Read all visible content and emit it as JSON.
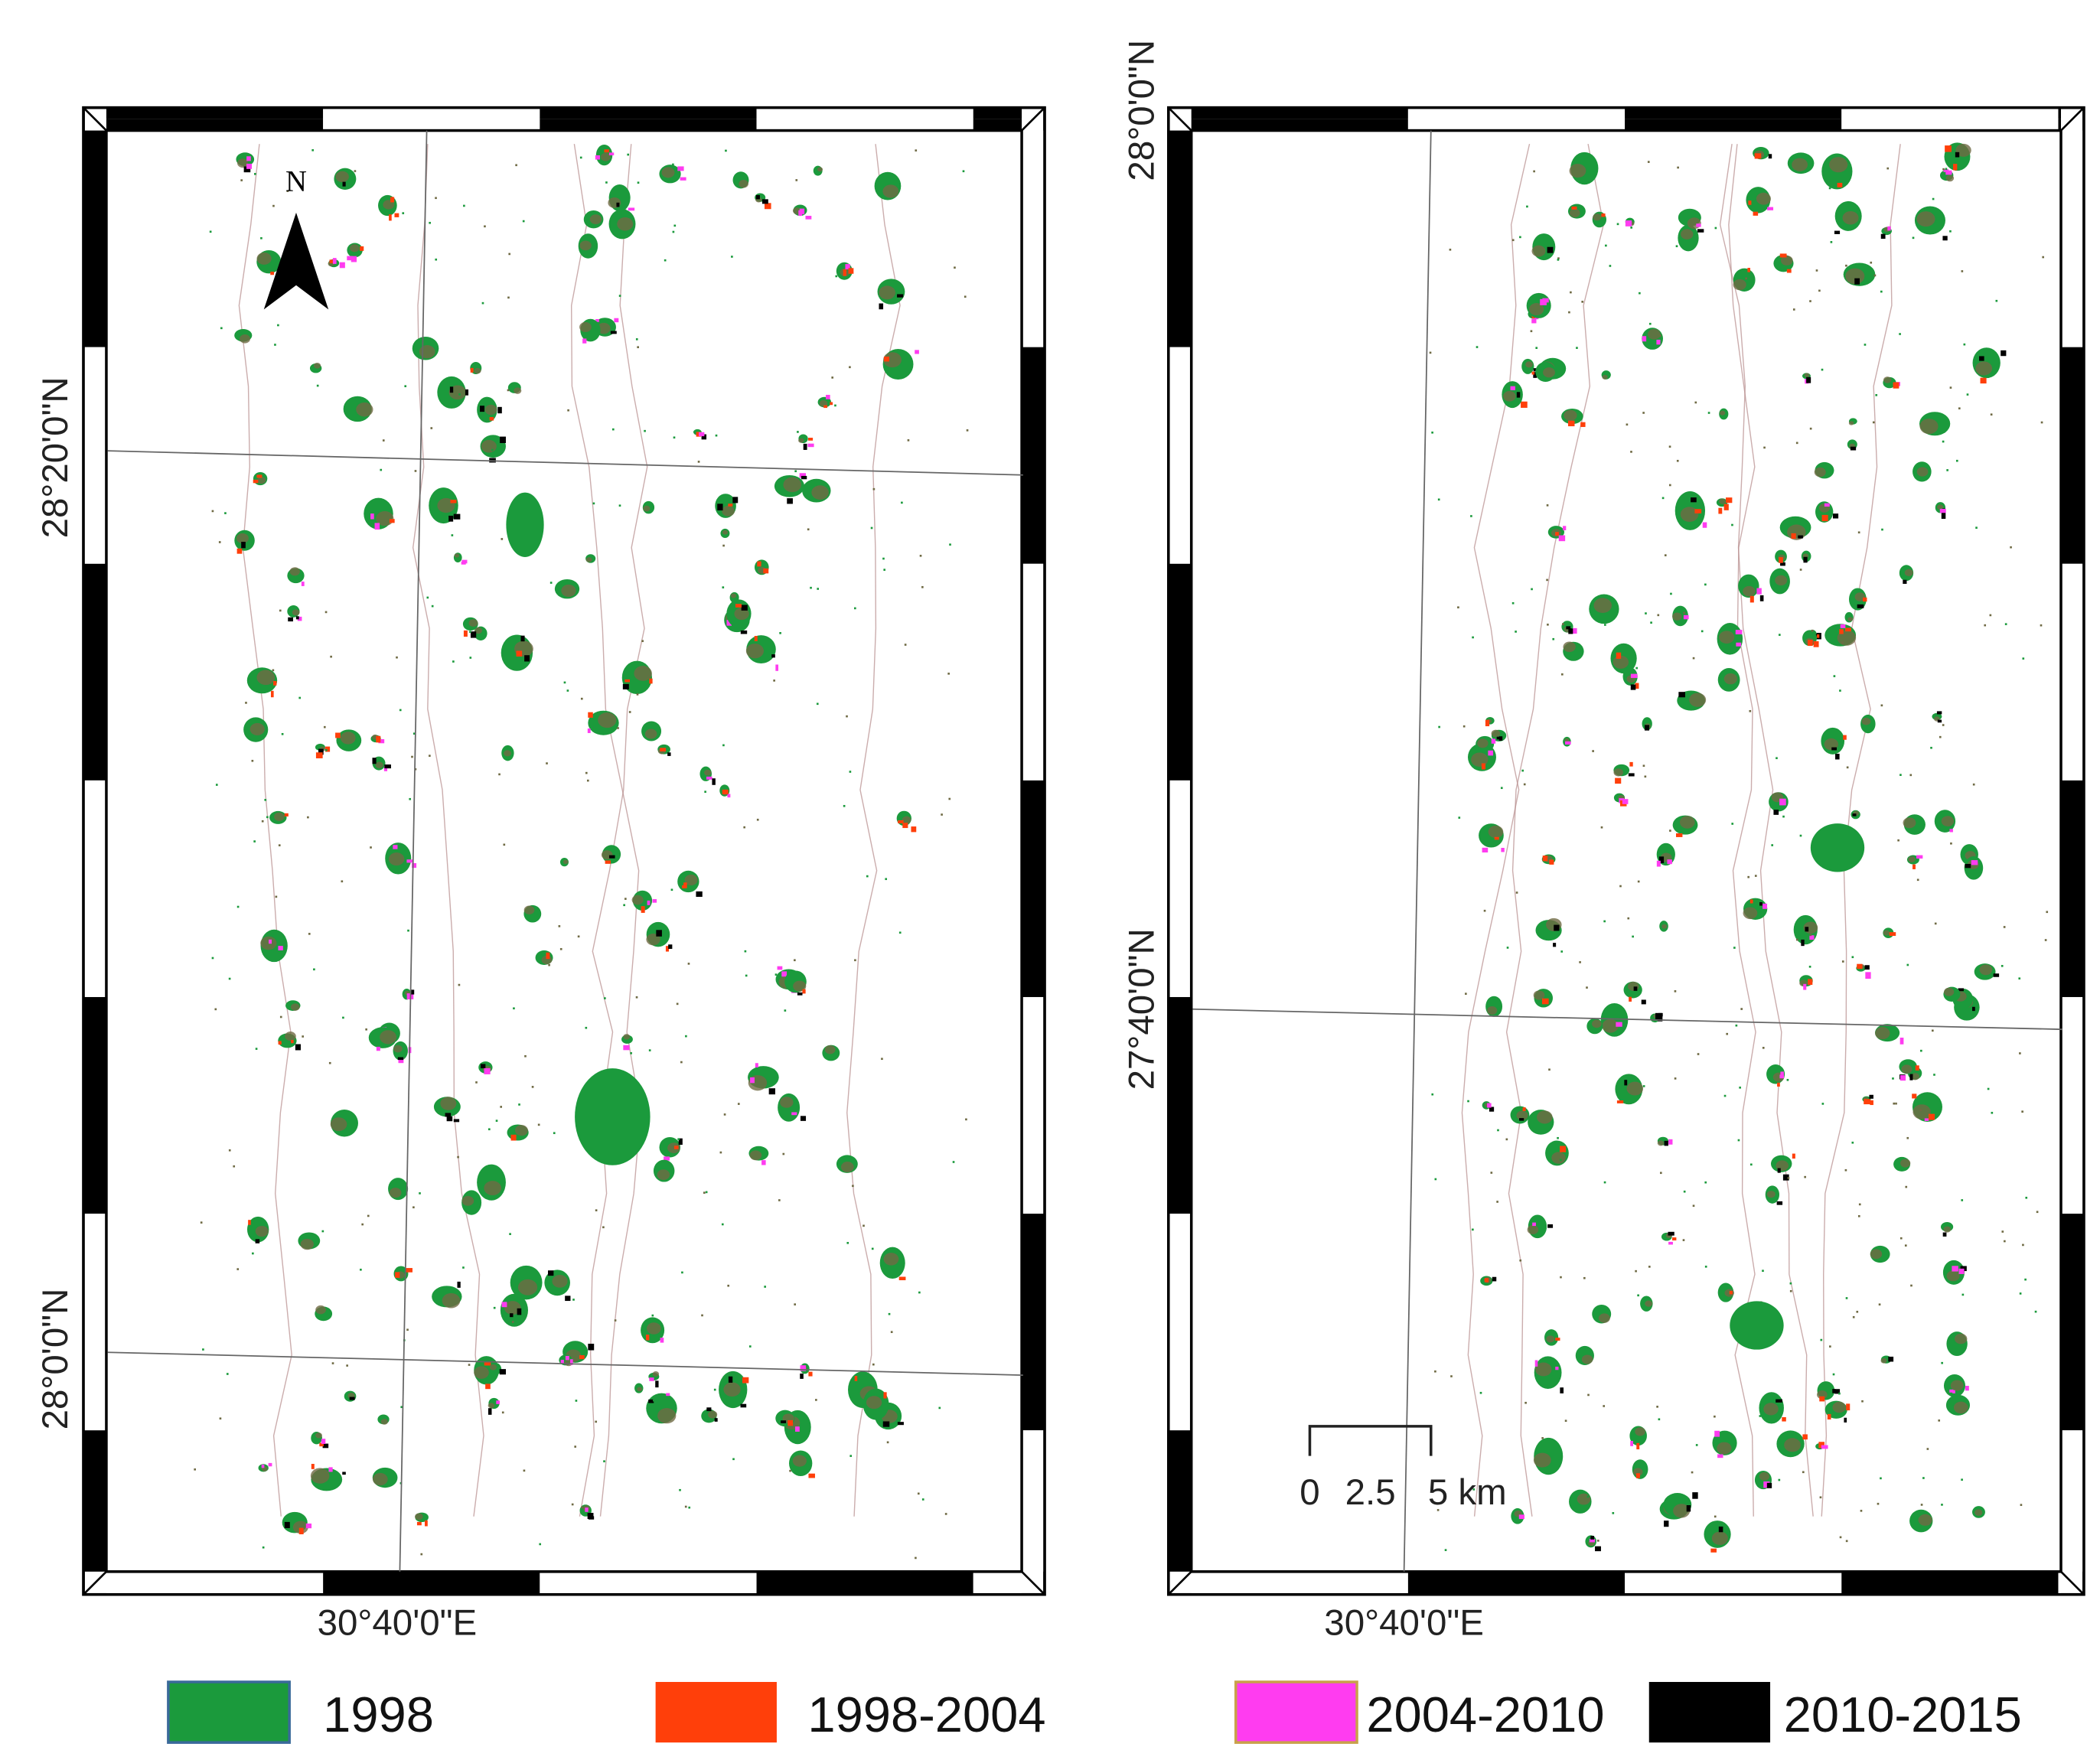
{
  "maps": [
    {
      "lat_labels": [
        "28°20'0\"N",
        "28°0'0\"N"
      ],
      "lon_label": "30°40'0\"E",
      "north": "N"
    },
    {
      "lat_labels": [
        "28°0'0\"N",
        "27°40'0\"N"
      ],
      "lon_label": "30°40'0\"E",
      "scale_bar": [
        "0",
        "2.5",
        "5 km"
      ]
    }
  ],
  "legend": [
    {
      "label": "1998",
      "color": "#1b9a3c"
    },
    {
      "label": "1998-2004",
      "color": "#ff3f0a"
    },
    {
      "label": "2004-2010",
      "color": "#ff3cf0"
    },
    {
      "label": "2010-2015",
      "color": "#000000"
    }
  ]
}
